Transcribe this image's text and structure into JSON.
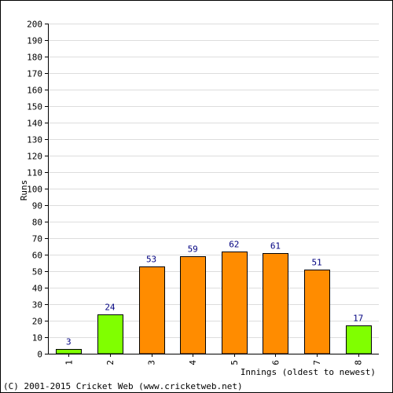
{
  "chart_data": {
    "type": "bar",
    "title": "",
    "xlabel": "Innings (oldest to newest)",
    "ylabel": "Runs",
    "categories": [
      "1",
      "2",
      "3",
      "4",
      "5",
      "6",
      "7",
      "8"
    ],
    "values": [
      3,
      24,
      53,
      59,
      62,
      61,
      51,
      17
    ],
    "ylim": [
      0,
      200
    ],
    "ytick_step": 10,
    "grid": true,
    "bar_colors": [
      "#80ff00",
      "#80ff00",
      "#ff8c00",
      "#ff8c00",
      "#ff8c00",
      "#ff8c00",
      "#ff8c00",
      "#80ff00"
    ],
    "footer": "(C) 2001-2015 Cricket Web (www.cricketweb.net)"
  }
}
